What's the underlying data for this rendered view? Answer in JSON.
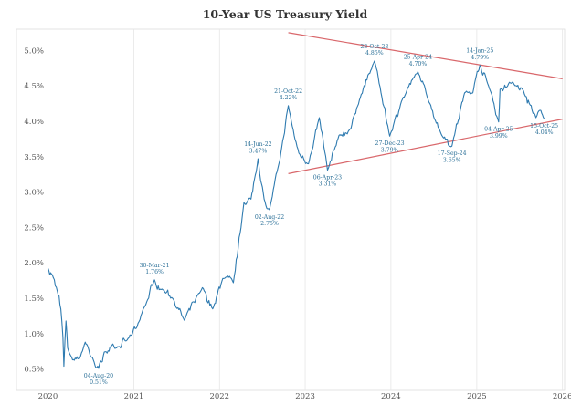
{
  "chart_data": {
    "type": "line",
    "title": "10-Year US Treasury Yield",
    "xlabel": "",
    "ylabel": "",
    "x_ticks": [
      "2020",
      "2021",
      "2022",
      "2023",
      "2024",
      "2025",
      "2026"
    ],
    "y_ticks": [
      "0.5%",
      "1.0%",
      "1.5%",
      "2.0%",
      "2.5%",
      "3.0%",
      "3.5%",
      "4.0%",
      "4.5%",
      "5.0%"
    ],
    "xlim": [
      "2019-08-20",
      "2026-01-10"
    ],
    "ylim": [
      0.2,
      5.3
    ],
    "grid": "vertical",
    "line_color": "#2f7bb0",
    "trendline_color": "#d9676b",
    "series": [
      {
        "values": [
          {
            "date": "2020-01-02",
            "y": 1.92
          },
          {
            "date": "2020-01-20",
            "y": 1.83
          },
          {
            "date": "2020-02-10",
            "y": 1.6
          },
          {
            "date": "2020-02-25",
            "y": 1.35
          },
          {
            "date": "2020-03-05",
            "y": 0.95
          },
          {
            "date": "2020-03-09",
            "y": 0.54
          },
          {
            "date": "2020-03-18",
            "y": 1.18
          },
          {
            "date": "2020-03-25",
            "y": 0.8
          },
          {
            "date": "2020-04-15",
            "y": 0.63
          },
          {
            "date": "2020-05-15",
            "y": 0.65
          },
          {
            "date": "2020-06-08",
            "y": 0.88
          },
          {
            "date": "2020-07-01",
            "y": 0.68
          },
          {
            "date": "2020-08-04",
            "y": 0.51
          },
          {
            "date": "2020-08-28",
            "y": 0.74
          },
          {
            "date": "2020-10-20",
            "y": 0.8
          },
          {
            "date": "2020-11-30",
            "y": 0.9
          },
          {
            "date": "2021-01-15",
            "y": 1.1
          },
          {
            "date": "2021-02-25",
            "y": 1.45
          },
          {
            "date": "2021-03-30",
            "y": 1.76
          },
          {
            "date": "2021-05-01",
            "y": 1.63
          },
          {
            "date": "2021-06-15",
            "y": 1.5
          },
          {
            "date": "2021-08-04",
            "y": 1.19
          },
          {
            "date": "2021-10-20",
            "y": 1.65
          },
          {
            "date": "2021-12-03",
            "y": 1.35
          },
          {
            "date": "2022-01-15",
            "y": 1.78
          },
          {
            "date": "2022-03-01",
            "y": 1.72
          },
          {
            "date": "2022-04-15",
            "y": 2.85
          },
          {
            "date": "2022-05-15",
            "y": 2.9
          },
          {
            "date": "2022-06-14",
            "y": 3.47
          },
          {
            "date": "2022-07-10",
            "y": 2.9
          },
          {
            "date": "2022-08-02",
            "y": 2.75
          },
          {
            "date": "2022-09-15",
            "y": 3.45
          },
          {
            "date": "2022-10-21",
            "y": 4.22
          },
          {
            "date": "2022-11-15",
            "y": 3.8
          },
          {
            "date": "2022-12-05",
            "y": 3.55
          },
          {
            "date": "2023-01-15",
            "y": 3.4
          },
          {
            "date": "2023-03-02",
            "y": 4.05
          },
          {
            "date": "2023-04-06",
            "y": 3.31
          },
          {
            "date": "2023-05-25",
            "y": 3.8
          },
          {
            "date": "2023-07-15",
            "y": 3.9
          },
          {
            "date": "2023-08-20",
            "y": 4.3
          },
          {
            "date": "2023-10-23",
            "y": 4.85
          },
          {
            "date": "2023-11-20",
            "y": 4.4
          },
          {
            "date": "2023-12-27",
            "y": 3.79
          },
          {
            "date": "2024-02-15",
            "y": 4.28
          },
          {
            "date": "2024-04-25",
            "y": 4.7
          },
          {
            "date": "2024-06-15",
            "y": 4.25
          },
          {
            "date": "2024-08-05",
            "y": 3.8
          },
          {
            "date": "2024-09-17",
            "y": 3.65
          },
          {
            "date": "2024-11-10",
            "y": 4.4
          },
          {
            "date": "2024-12-15",
            "y": 4.4
          },
          {
            "date": "2025-01-14",
            "y": 4.79
          },
          {
            "date": "2025-02-20",
            "y": 4.5
          },
          {
            "date": "2025-03-15",
            "y": 4.25
          },
          {
            "date": "2025-04-04",
            "y": 3.99
          },
          {
            "date": "2025-04-10",
            "y": 4.45
          },
          {
            "date": "2025-05-20",
            "y": 4.55
          },
          {
            "date": "2025-07-15",
            "y": 4.45
          },
          {
            "date": "2025-09-10",
            "y": 4.05
          },
          {
            "date": "2025-10-01",
            "y": 4.15
          },
          {
            "date": "2025-10-15",
            "y": 4.04
          }
        ]
      }
    ],
    "trendlines": [
      {
        "start": {
          "date": "2022-10-21",
          "y": 5.25
        },
        "end": {
          "date": "2026-01-01",
          "y": 4.6
        }
      },
      {
        "start": {
          "date": "2022-10-21",
          "y": 3.26
        },
        "end": {
          "date": "2026-01-01",
          "y": 4.03
        }
      }
    ],
    "annotations": [
      {
        "date": "2020-08-04",
        "y": 0.51,
        "lines": [
          "04-Aug-20",
          "0.51%"
        ],
        "pos": "below"
      },
      {
        "date": "2021-03-30",
        "y": 1.76,
        "lines": [
          "30-Mar-21",
          "1.76%"
        ],
        "pos": "above"
      },
      {
        "date": "2022-06-14",
        "y": 3.47,
        "lines": [
          "14-Jun-22",
          "3.47%"
        ],
        "pos": "above"
      },
      {
        "date": "2022-08-02",
        "y": 2.75,
        "lines": [
          "02-Aug-22",
          "2.75%"
        ],
        "pos": "below"
      },
      {
        "date": "2022-10-21",
        "y": 4.22,
        "lines": [
          "21-Oct-22",
          "4.22%"
        ],
        "pos": "above"
      },
      {
        "date": "2023-04-06",
        "y": 3.31,
        "lines": [
          "06-Apr-23",
          "3.31%"
        ],
        "pos": "below"
      },
      {
        "date": "2023-10-23",
        "y": 4.85,
        "lines": [
          "23-Oct-23",
          "4.85%"
        ],
        "pos": "above"
      },
      {
        "date": "2023-12-27",
        "y": 3.79,
        "lines": [
          "27-Dec-23",
          "3.79%"
        ],
        "pos": "below"
      },
      {
        "date": "2024-04-25",
        "y": 4.7,
        "lines": [
          "25-Apr-24",
          "4.70%"
        ],
        "pos": "above"
      },
      {
        "date": "2024-09-17",
        "y": 3.65,
        "lines": [
          "17-Sep-24",
          "3.65%"
        ],
        "pos": "below"
      },
      {
        "date": "2025-01-14",
        "y": 4.79,
        "lines": [
          "14-Jan-25",
          "4.79%"
        ],
        "pos": "above"
      },
      {
        "date": "2025-04-04",
        "y": 3.99,
        "lines": [
          "04-Apr-25",
          "3.99%"
        ],
        "pos": "below"
      },
      {
        "date": "2025-10-15",
        "y": 4.04,
        "lines": [
          "15-Oct-25",
          "4.04%"
        ],
        "pos": "below"
      }
    ]
  }
}
